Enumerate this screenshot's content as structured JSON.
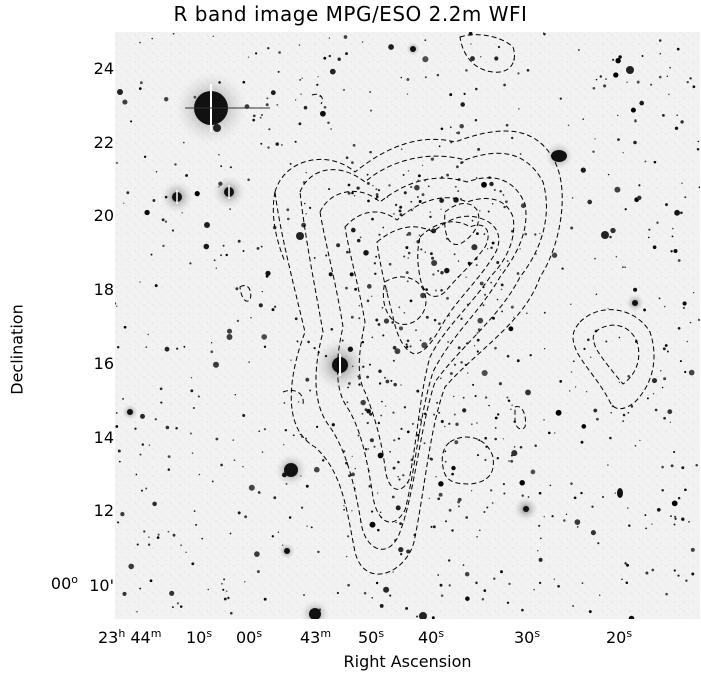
{
  "title": "R band image MPG/ESO 2.2m WFI",
  "axes": {
    "xlabel": "Right Ascension",
    "ylabel": "Declination",
    "yticks": [
      "24",
      "22",
      "20",
      "18",
      "16",
      "14",
      "12"
    ],
    "dec_deg": "00",
    "dec_deg_sup": "o",
    "dec_min": "10'",
    "xticks": {
      "h_num": "23",
      "h_sup": "h",
      "m44_num": "44",
      "m44_sup": "m",
      "s10_num": "10",
      "s10_sup": "s",
      "s00_num": "00",
      "s00_sup": "s",
      "m43_num": "43",
      "m43_sup": "m",
      "s50_num": "50",
      "s50_sup": "s",
      "s40_num": "40",
      "s40_sup": "s",
      "s30_num": "30",
      "s30_sup": "s",
      "s20_num": "20",
      "s20_sup": "s"
    }
  },
  "colors": {
    "background": "#ffffff",
    "sky": "#f1f1f1",
    "stars": "#111111",
    "contours": "#000000"
  }
}
